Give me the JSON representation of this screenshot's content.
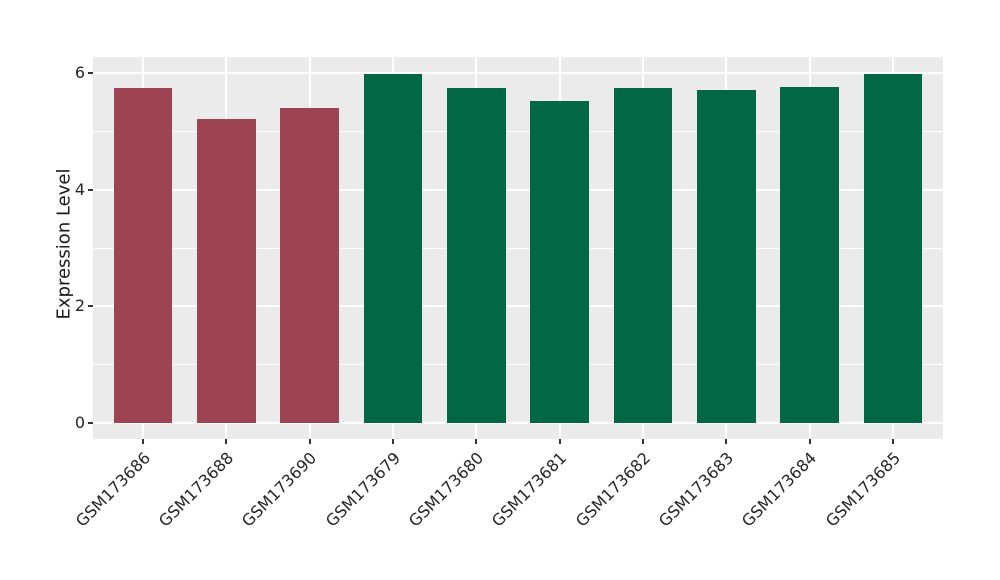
{
  "chart_data": {
    "type": "bar",
    "title": "",
    "xlabel": "",
    "ylabel": "Expression Level",
    "categories": [
      "GSM173686",
      "GSM173688",
      "GSM173690",
      "GSM173679",
      "GSM173680",
      "GSM173681",
      "GSM173682",
      "GSM173683",
      "GSM173684",
      "GSM173685"
    ],
    "values": [
      5.75,
      5.22,
      5.4,
      5.99,
      5.74,
      5.53,
      5.75,
      5.71,
      5.77,
      5.98
    ],
    "bar_colors": [
      "#9E4352",
      "#9E4352",
      "#9E4352",
      "#026745",
      "#026745",
      "#026745",
      "#026745",
      "#026745",
      "#026745",
      "#026745"
    ],
    "yticks": [
      0,
      2,
      4,
      6
    ],
    "minor_yticks": [
      1,
      3,
      5
    ],
    "ylim": [
      -0.28,
      6.28
    ],
    "grid": true,
    "legend": false,
    "x_label_rotation": -45,
    "colors": {
      "panel_bg": "#EBEBEB",
      "grid": "#FFFFFF",
      "tick_mark": "#333333",
      "tick_text": "#262626",
      "axis_title_text": "#1A1A1A",
      "figure_bg": "#FFFFFF",
      "group_red": "#9E4352",
      "group_green": "#026745"
    }
  }
}
